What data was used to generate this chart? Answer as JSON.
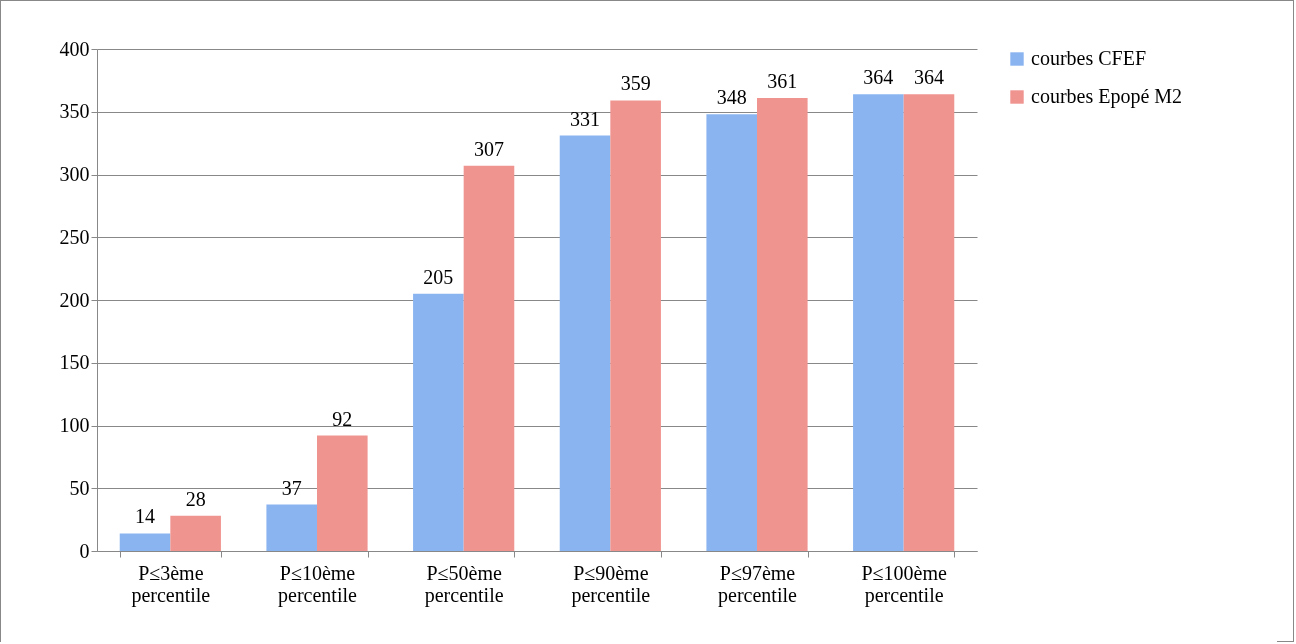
{
  "chart_data": {
    "type": "bar",
    "categories": [
      "P≤3ème percentile",
      "P≤10ème percentile",
      "P≤50ème percentile",
      "P≤90ème percentile",
      "P≤97ème percentile",
      "P≤100ème percentile"
    ],
    "series": [
      {
        "name": "courbes CFEF",
        "color": "#8ab4f0",
        "values": [
          14,
          37,
          205,
          331,
          348,
          364
        ]
      },
      {
        "name": "courbes Epopé M2",
        "color": "#f09490",
        "values": [
          28,
          92,
          307,
          359,
          361,
          364
        ]
      }
    ],
    "ylim": [
      0,
      400
    ],
    "yticks": [
      0,
      50,
      100,
      150,
      200,
      250,
      300,
      350,
      400
    ],
    "grid": "y",
    "legend": "right",
    "data_labels": true
  }
}
